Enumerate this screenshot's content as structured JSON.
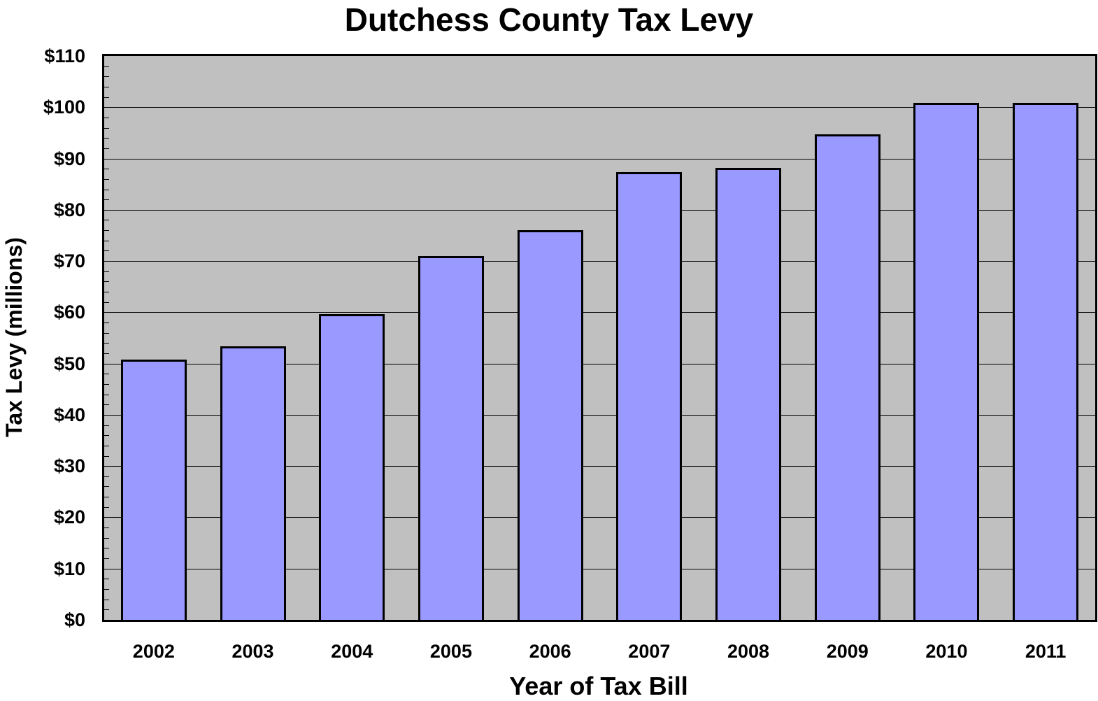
{
  "chart_data": {
    "type": "bar",
    "title": "Dutchess County Tax Levy",
    "xlabel": "Year of Tax Bill",
    "ylabel": "Tax Levy (millions)",
    "categories": [
      "2002",
      "2003",
      "2004",
      "2005",
      "2006",
      "2007",
      "2008",
      "2009",
      "2010",
      "2011"
    ],
    "values": [
      50.8,
      53.3,
      59.6,
      71.0,
      76.0,
      87.3,
      88.2,
      94.7,
      100.8,
      100.8
    ],
    "ylim": [
      0,
      110
    ],
    "yticks": [
      0,
      10,
      20,
      30,
      40,
      50,
      60,
      70,
      80,
      90,
      100,
      110
    ],
    "ytick_labels": [
      "$0",
      "$10",
      "$20",
      "$30",
      "$40",
      "$50",
      "$60",
      "$70",
      "$80",
      "$90",
      "$100",
      "$110"
    ],
    "grid": true,
    "legend": null,
    "colors": {
      "bar_fill": "#9999ff",
      "bar_edge": "#000000",
      "plot_bg": "#c0c0c0"
    }
  }
}
